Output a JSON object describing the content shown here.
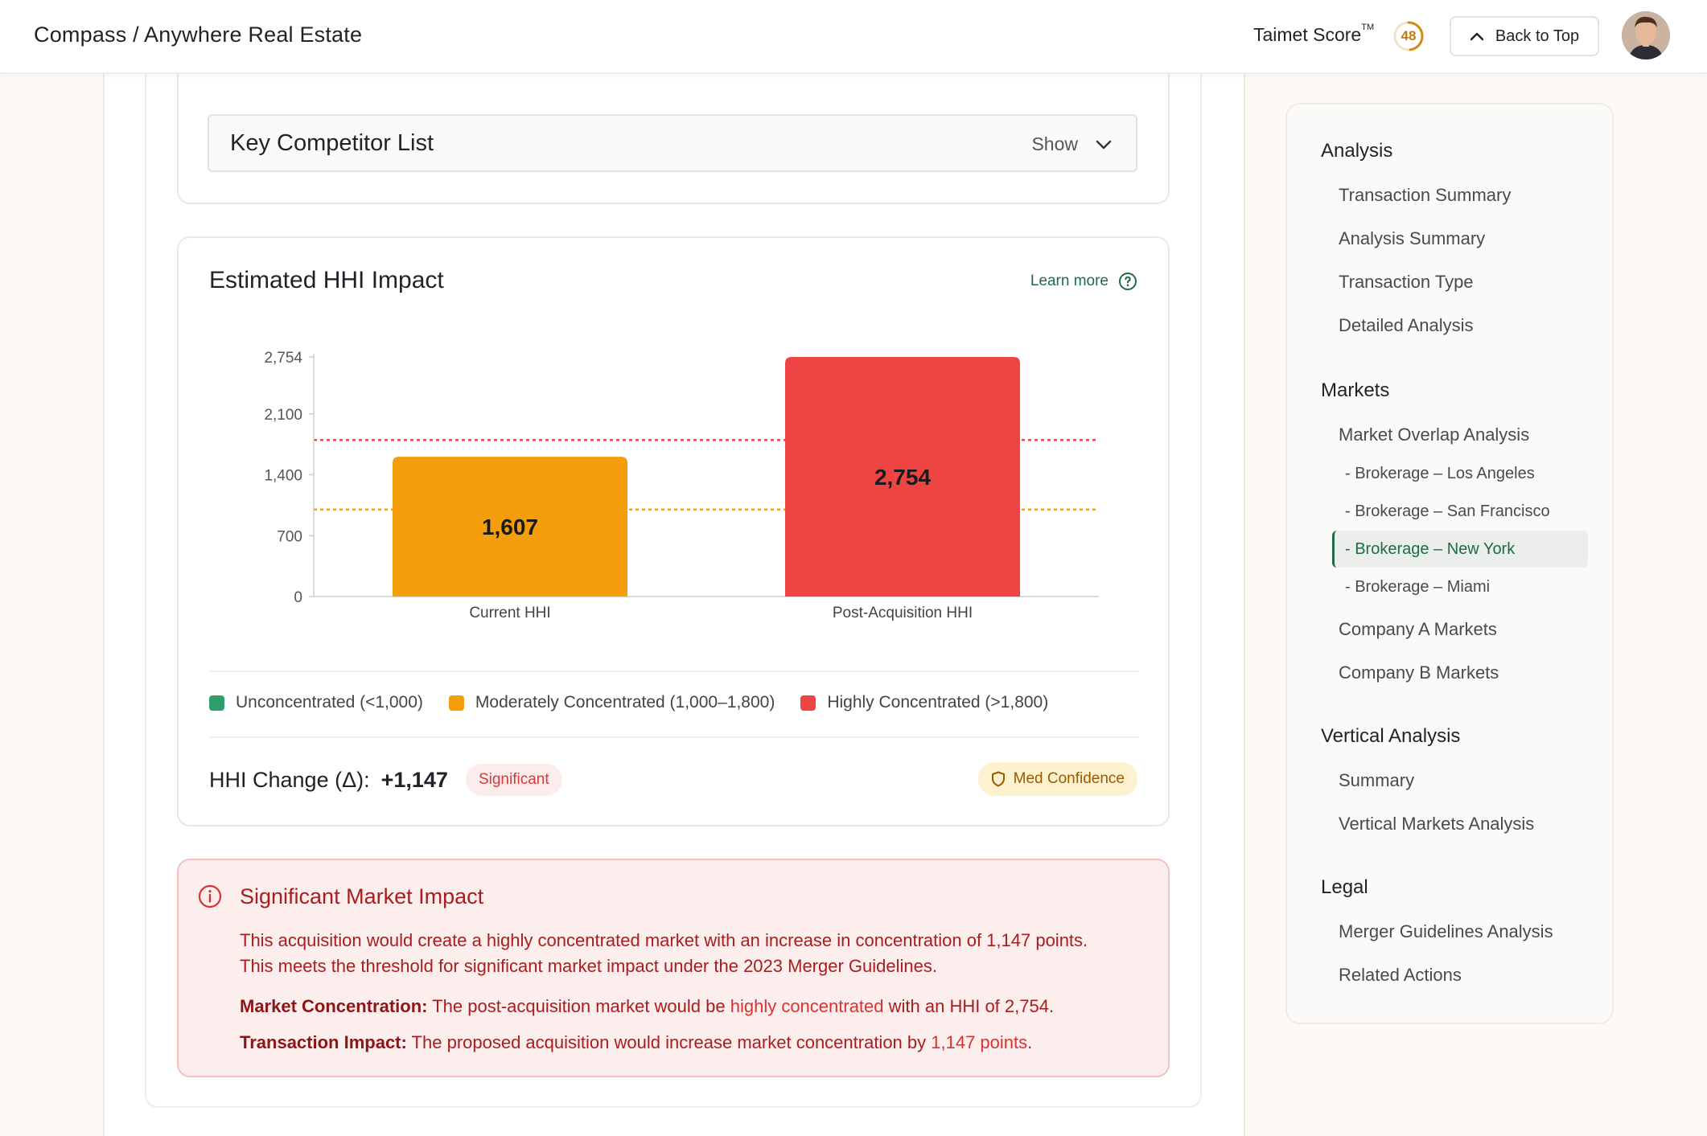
{
  "header": {
    "title": "Compass / Anywhere Real Estate",
    "score_label": "Taimet Score",
    "score_mark": "TM",
    "score_value": "48",
    "score_fraction": 0.48,
    "back_to_top": "Back to Top"
  },
  "competitor": {
    "title": "Key Competitor List",
    "toggle": "Show"
  },
  "hhi": {
    "title": "Estimated HHI Impact",
    "learn_more": "Learn more",
    "legend": [
      {
        "label": "Unconcentrated (<1,000)",
        "color": "#2e9e6b"
      },
      {
        "label": "Moderately Concentrated (1,000–1,800)",
        "color": "#f59e0b"
      },
      {
        "label": "Highly Concentrated (>1,800)",
        "color": "#ef4444"
      }
    ],
    "change_label": "HHI Change (Δ):",
    "change_value": "+1,147",
    "significance": "Significant",
    "confidence": "Med Confidence"
  },
  "chart_data": {
    "type": "bar",
    "categories": [
      "Current HHI",
      "Post-Acquisition HHI"
    ],
    "values": [
      1607,
      2754
    ],
    "value_labels": [
      "1,607",
      "2,754"
    ],
    "bar_colors": [
      "#f59e0b",
      "#ef4444"
    ],
    "y_ticks": [
      0,
      700,
      1400,
      2100,
      2754
    ],
    "y_tick_labels": [
      "0",
      "700",
      "1,400",
      "2,100",
      "2,754"
    ],
    "ylim": [
      0,
      2754
    ],
    "thresholds": [
      {
        "value": 1000,
        "color": "#f59e0b"
      },
      {
        "value": 1800,
        "color": "#ef4444"
      }
    ],
    "grid": false
  },
  "impact": {
    "title": "Significant Market Impact",
    "line1": "This acquisition would create a highly concentrated market with an increase in concentration of 1,147 points.",
    "line2": "This meets the threshold for significant market impact under the 2023 Merger Guidelines.",
    "conc_label": "Market Concentration:",
    "conc_pre": " The post-acquisition market would be ",
    "conc_hl": "highly concentrated",
    "conc_post": " with an HHI of 2,754.",
    "trans_label": "Transaction Impact:",
    "trans_pre": " The proposed acquisition would increase market concentration by ",
    "trans_hl": "1,147 points",
    "trans_post": "."
  },
  "sidebar": {
    "analysis": {
      "title": "Analysis",
      "items": [
        "Transaction Summary",
        "Analysis Summary",
        "Transaction Type",
        "Detailed Analysis"
      ]
    },
    "markets": {
      "title": "Markets",
      "overlap": "Market Overlap Analysis",
      "subs": [
        "- Brokerage – Los Angeles",
        "- Brokerage – San Francisco",
        "- Brokerage – New York",
        "- Brokerage – Miami"
      ],
      "company_a": "Company A Markets",
      "company_b": "Company B Markets"
    },
    "vertical": {
      "title": "Vertical Analysis",
      "items": [
        "Summary",
        "Vertical Markets Analysis"
      ]
    },
    "legal": {
      "title": "Legal",
      "items": [
        "Merger Guidelines Analysis",
        "Related Actions"
      ]
    }
  }
}
